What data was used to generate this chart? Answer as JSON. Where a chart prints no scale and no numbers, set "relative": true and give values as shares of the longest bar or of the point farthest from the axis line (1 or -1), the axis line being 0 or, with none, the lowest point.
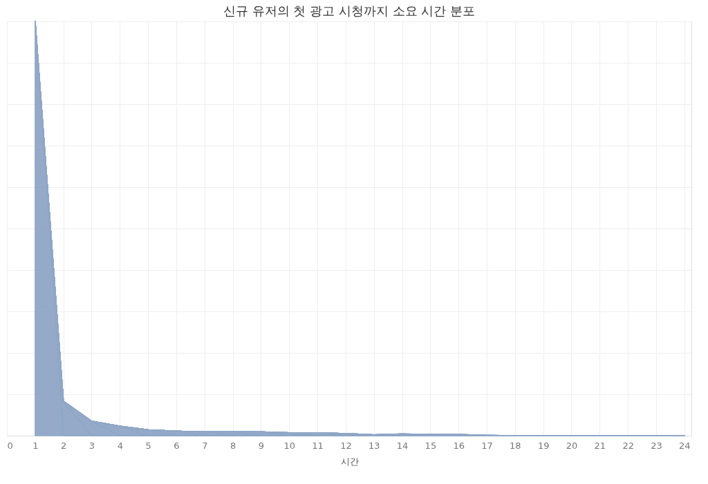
{
  "chart_data": {
    "type": "area",
    "title": "신규 유저의 첫 광고 시청까지 소요 시간 분포",
    "xlabel": "시간",
    "relative": true,
    "grid": true,
    "x": [
      1,
      2,
      3,
      4,
      5,
      6,
      7,
      8,
      9,
      10,
      11,
      12,
      13,
      14,
      15,
      16,
      17,
      18,
      19,
      20,
      21,
      22,
      23,
      24
    ],
    "xlim": [
      0,
      24.25
    ],
    "xticks": [
      0,
      1,
      2,
      3,
      4,
      5,
      6,
      7,
      8,
      9,
      10,
      11,
      12,
      13,
      14,
      15,
      16,
      17,
      18,
      19,
      20,
      21,
      22,
      23,
      24
    ],
    "series": [
      {
        "color": "#8fa6c6",
        "values": [
          1,
          0.083,
          0.035,
          0.023,
          0.014,
          0.011,
          0.009,
          0.009,
          0.009,
          0.007,
          0.007,
          0.005,
          0.002,
          0.004,
          0.003,
          0.003,
          0.001,
          0,
          0,
          0,
          0,
          0,
          0,
          0
        ]
      }
    ]
  }
}
